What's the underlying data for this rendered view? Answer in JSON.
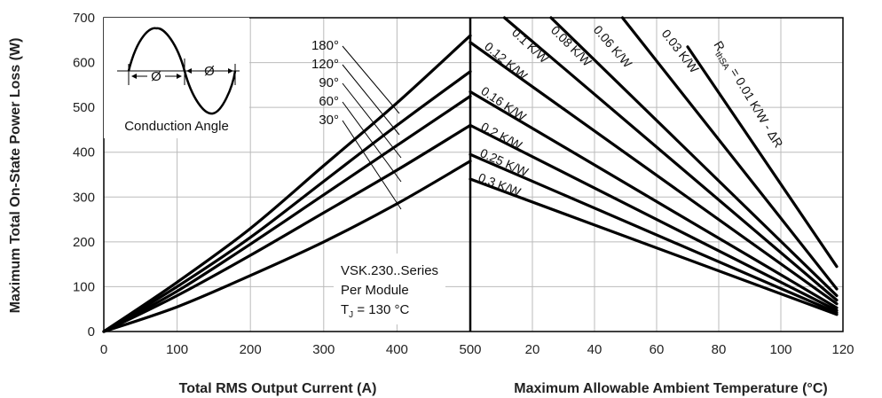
{
  "chart_data": {
    "type": "line",
    "y_axis": {
      "label": "Maximum Total On-State Power Loss (W)",
      "ylim": [
        0,
        700
      ],
      "ticks": [
        0,
        100,
        200,
        300,
        400,
        500,
        600,
        700
      ]
    },
    "left_panel": {
      "xlabel": "Total RMS Output Current (A)",
      "xlim": [
        0,
        500
      ],
      "xticks": [
        0,
        100,
        200,
        300,
        400,
        500
      ],
      "series": [
        {
          "name": "180°",
          "x": [
            0,
            100,
            200,
            300,
            400,
            500
          ],
          "y": [
            0,
            110,
            230,
            370,
            510,
            660
          ]
        },
        {
          "name": "120°",
          "x": [
            0,
            100,
            200,
            300,
            400,
            500
          ],
          "y": [
            0,
            100,
            210,
            335,
            460,
            580
          ]
        },
        {
          "name": "90°",
          "x": [
            0,
            100,
            200,
            300,
            400,
            500
          ],
          "y": [
            0,
            90,
            195,
            305,
            415,
            525
          ]
        },
        {
          "name": "60°",
          "x": [
            0,
            100,
            200,
            300,
            400,
            500
          ],
          "y": [
            0,
            80,
            170,
            265,
            360,
            460
          ]
        },
        {
          "name": "30°",
          "x": [
            0,
            100,
            200,
            300,
            400,
            500
          ],
          "y": [
            0,
            55,
            125,
            200,
            285,
            380
          ]
        }
      ]
    },
    "right_panel": {
      "xlabel": "Maximum Allowable Ambient Temperature (°C)",
      "xlim": [
        0,
        120
      ],
      "xticks": [
        20,
        40,
        60,
        80,
        100,
        120
      ],
      "tick_zero_label": "500",
      "series": [
        {
          "name": "0.3 K/W",
          "x": [
            0,
            118
          ],
          "y": [
            340,
            38
          ]
        },
        {
          "name": "0.25 K/W",
          "x": [
            0,
            118
          ],
          "y": [
            395,
            42
          ]
        },
        {
          "name": "0.2 K/W",
          "x": [
            0,
            118
          ],
          "y": [
            460,
            47
          ]
        },
        {
          "name": "0.16 K/W",
          "x": [
            0,
            118
          ],
          "y": [
            535,
            53
          ]
        },
        {
          "name": "0.12 K/W",
          "x": [
            0,
            118
          ],
          "y": [
            645,
            62
          ]
        },
        {
          "name": "0.1 K/W",
          "x": [
            11,
            118
          ],
          "y": [
            700,
            70
          ]
        },
        {
          "name": "0.08 K/W",
          "x": [
            26,
            118
          ],
          "y": [
            700,
            80
          ]
        },
        {
          "name": "0.06 K/W",
          "x": [
            49,
            118
          ],
          "y": [
            700,
            95
          ]
        },
        {
          "name": "0.03 K/W",
          "x": [
            70,
            118
          ],
          "y": [
            635,
            145
          ]
        }
      ]
    },
    "curve_labels": {
      "angles": [
        "180°",
        "120°",
        "90°",
        "60°",
        "30°"
      ],
      "resistances": [
        "0.3 K/W",
        "0.25 K/W",
        "0.2 K/W",
        "0.16 K/W",
        "0.12 K/W",
        "0.1 K/W",
        "0.08 K/W",
        "0.06 K/W",
        "0.03 K/W"
      ],
      "rthsa_main": "R",
      "rthsa_sub": "thSA",
      "rthsa_rest": " = 0.01 K/W - ΔR"
    },
    "annotations": {
      "inset_label": "Conduction Angle",
      "phi_symbol": "Ø",
      "info_line1": "VSK.230..Series",
      "info_line2": "Per Module",
      "tj_main": "T",
      "tj_sub": "J",
      "tj_rest": " = 130 °C"
    },
    "grid": true
  }
}
